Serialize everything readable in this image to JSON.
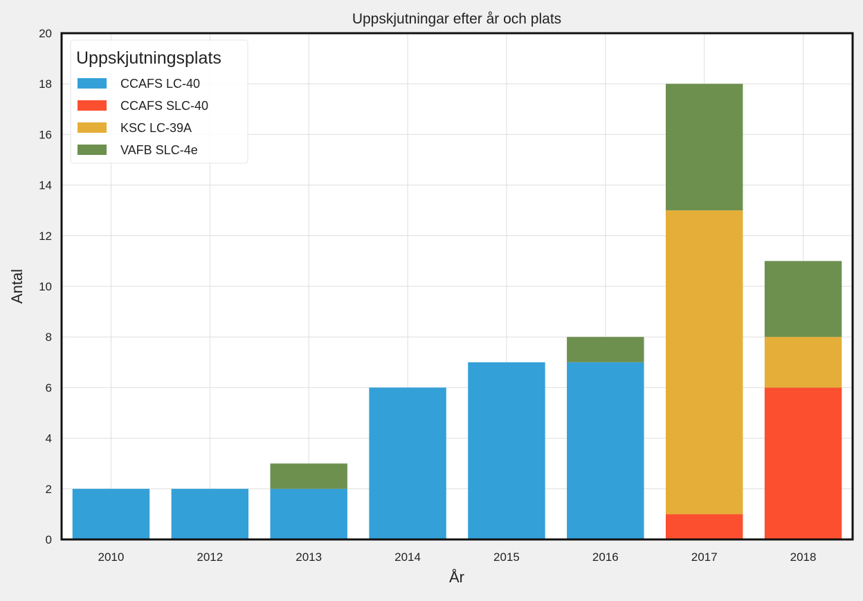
{
  "chart_data": {
    "type": "bar",
    "stacked": true,
    "title": "Uppskjutningar efter år och plats",
    "xlabel": "År",
    "ylabel": "Antal",
    "categories": [
      "2010",
      "2012",
      "2013",
      "2014",
      "2015",
      "2016",
      "2017",
      "2018"
    ],
    "ylim": [
      0,
      20
    ],
    "yticks": [
      0,
      2,
      4,
      6,
      8,
      10,
      12,
      14,
      16,
      18,
      20
    ],
    "grid": true,
    "legend": {
      "title": "Uppskjutningsplats",
      "placement": "top-left"
    },
    "series": [
      {
        "name": "CCAFS LC-40",
        "color": "#34a0d8",
        "values": [
          2,
          2,
          2,
          6,
          7,
          7,
          0,
          0
        ]
      },
      {
        "name": "CCAFS SLC-40",
        "color": "#fc4f30",
        "values": [
          0,
          0,
          0,
          0,
          0,
          0,
          1,
          6
        ]
      },
      {
        "name": "KSC LC-39A",
        "color": "#e5ae38",
        "values": [
          0,
          0,
          0,
          0,
          0,
          0,
          12,
          2
        ]
      },
      {
        "name": "VAFB SLC-4e",
        "color": "#6d904f",
        "values": [
          0,
          0,
          1,
          0,
          0,
          1,
          5,
          3
        ]
      }
    ]
  }
}
